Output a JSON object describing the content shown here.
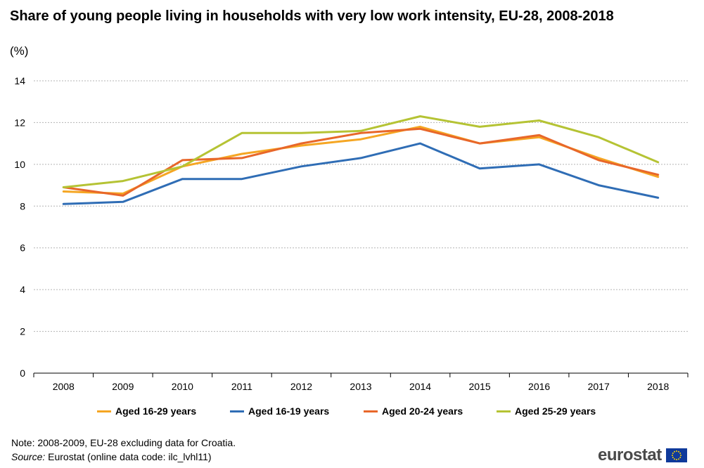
{
  "title": "Share of young people living in households with very low work intensity, EU-28, 2008-2018",
  "unit": "(%)",
  "note": "Note: 2008-2009, EU-28 excluding data for Croatia.",
  "source": {
    "label": "Source:",
    "text": "Eurostat (online data code: ilc_lvhl11)"
  },
  "logo": {
    "text": "eurostat",
    "flag_icon": "eu-flag-icon"
  },
  "chart_data": {
    "type": "line",
    "title": "Share of young people living in households with very low work intensity, EU-28, 2008-2018",
    "ylabel": "(%)",
    "xlabel": "",
    "categories": [
      "2008",
      "2009",
      "2010",
      "2011",
      "2012",
      "2013",
      "2014",
      "2015",
      "2016",
      "2017",
      "2018"
    ],
    "ylim": [
      0,
      14
    ],
    "yticks": [
      0,
      2,
      4,
      6,
      8,
      10,
      12,
      14
    ],
    "grid": true,
    "legend_position": "bottom",
    "series": [
      {
        "name": "Aged 16-29 years",
        "color": "#f5a623",
        "values": [
          8.7,
          8.6,
          9.9,
          10.5,
          10.9,
          11.2,
          11.8,
          11.0,
          11.3,
          10.3,
          9.4
        ]
      },
      {
        "name": "Aged 16-19 years",
        "color": "#2f6db5",
        "values": [
          8.1,
          8.2,
          9.3,
          9.3,
          9.9,
          10.3,
          11.0,
          9.8,
          10.0,
          9.0,
          8.4
        ]
      },
      {
        "name": "Aged 20-24 years",
        "color": "#e8672a",
        "values": [
          8.9,
          8.5,
          10.2,
          10.3,
          11.0,
          11.5,
          11.7,
          11.0,
          11.4,
          10.2,
          9.5
        ]
      },
      {
        "name": "Aged 25-29 years",
        "color": "#b5c334",
        "values": [
          8.9,
          9.2,
          9.9,
          11.5,
          11.5,
          11.6,
          12.3,
          11.8,
          12.1,
          11.3,
          10.1
        ]
      }
    ]
  }
}
